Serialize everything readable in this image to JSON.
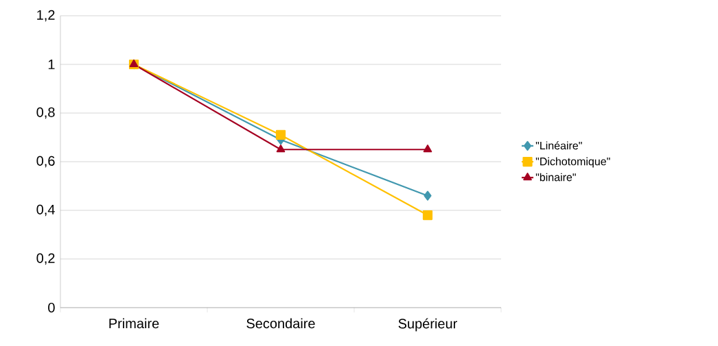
{
  "chart_data": {
    "type": "line",
    "categories": [
      "Primaire",
      "Secondaire",
      "Supérieur"
    ],
    "series": [
      {
        "name": "\"Linéaire\"",
        "color": "#4198af",
        "marker": "diamond",
        "values": [
          1,
          0.69,
          0.46
        ]
      },
      {
        "name": "\"Dichotomique\"",
        "color": "#ffc000",
        "marker": "square",
        "values": [
          1,
          0.71,
          0.38
        ]
      },
      {
        "name": "\"binaire\"",
        "color": "#a50021",
        "marker": "triangle",
        "values": [
          1,
          0.65,
          0.65
        ]
      }
    ],
    "ylim": [
      0,
      1.2
    ],
    "yticks": [
      0,
      {
        "value": 0.2,
        "label": "0,2"
      },
      {
        "value": 0.4,
        "label": "0,4"
      },
      {
        "value": 0.6,
        "label": "0,6"
      },
      {
        "value": 0.8,
        "label": "0,8"
      },
      1,
      {
        "value": 1.2,
        "label": "1,2"
      }
    ],
    "grid": "y",
    "legend": "right",
    "line_style": "solid"
  }
}
